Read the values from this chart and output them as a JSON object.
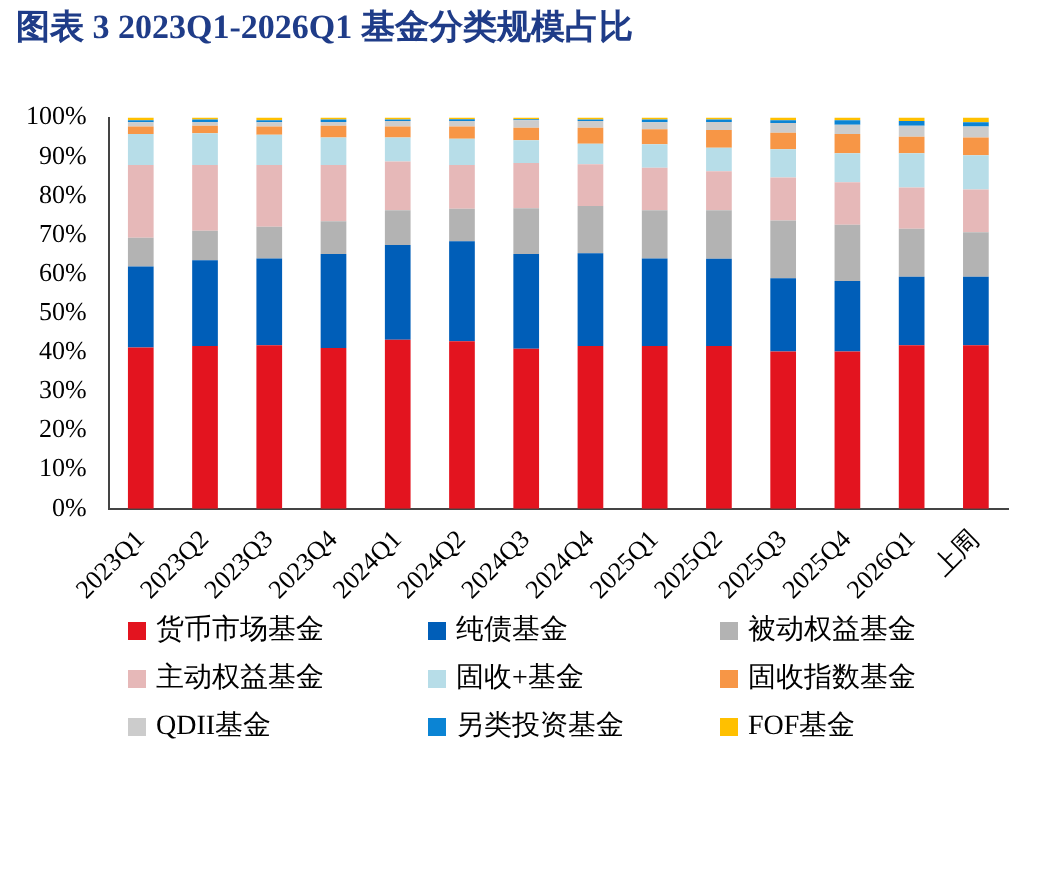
{
  "chart_data": {
    "type": "bar",
    "title": "图表 3   2023Q1-2026Q1 基金分类规模占比",
    "stacked": true,
    "legend": "bottom",
    "grid": false,
    "categories": [
      "2023Q1",
      "2023Q2",
      "2023Q3",
      "2023Q4",
      "2024Q1",
      "2024Q2",
      "2024Q3",
      "2024Q4",
      "2025Q1",
      "2025Q2",
      "2025Q3",
      "2025Q4",
      "2026Q1",
      "上周"
    ],
    "ylim": [
      0,
      100
    ],
    "yticks": [
      {
        "value": 0,
        "label": "0%"
      },
      {
        "value": 10,
        "label": "10%"
      },
      {
        "value": 20,
        "label": "20%"
      },
      {
        "value": 30,
        "label": "30%"
      },
      {
        "value": 40,
        "label": "40%"
      },
      {
        "value": 50,
        "label": "50%"
      },
      {
        "value": 60,
        "label": "60%"
      },
      {
        "value": 70,
        "label": "70%"
      },
      {
        "value": 80,
        "label": "80%"
      },
      {
        "value": 90,
        "label": "90%"
      },
      {
        "value": 100,
        "label": "100%"
      }
    ],
    "series": [
      {
        "name": "货币市场基金",
        "color": "#e3141f",
        "values": [
          41.2,
          41.6,
          41.8,
          41.1,
          43.2,
          42.8,
          40.9,
          41.6,
          41.6,
          41.6,
          40.2,
          40.2,
          41.8,
          41.8
        ]
      },
      {
        "name": "纯债基金",
        "color": "#005eb8",
        "values": [
          20.7,
          21.9,
          22.2,
          24.0,
          24.2,
          25.6,
          24.2,
          23.7,
          22.4,
          22.3,
          18.7,
          18.0,
          17.5,
          17.5
        ]
      },
      {
        "name": "被动权益基金",
        "color": "#b3b3b3",
        "values": [
          7.4,
          7.6,
          8.1,
          8.4,
          8.9,
          8.3,
          11.7,
          12.1,
          12.3,
          12.4,
          14.8,
          14.4,
          12.3,
          11.4
        ]
      },
      {
        "name": "主动权益基金",
        "color": "#e6b8b8",
        "values": [
          18.6,
          16.8,
          15.8,
          14.4,
          12.5,
          11.2,
          11.6,
          10.7,
          10.9,
          10.0,
          11.0,
          10.9,
          10.5,
          10.9
        ]
      },
      {
        "name": "固收+基金",
        "color": "#b7dde8",
        "values": [
          7.9,
          8.1,
          7.7,
          7.0,
          6.1,
          6.7,
          5.8,
          5.2,
          6.0,
          6.0,
          7.2,
          7.4,
          8.8,
          8.8
        ]
      },
      {
        "name": "固收指数基金",
        "color": "#f79646",
        "values": [
          1.9,
          1.9,
          2.1,
          3.0,
          2.8,
          3.1,
          3.2,
          4.1,
          3.8,
          4.5,
          4.2,
          4.9,
          4.2,
          4.5
        ]
      },
      {
        "name": "QDII基金",
        "color": "#cccccc",
        "values": [
          1.1,
          1.0,
          1.1,
          1.0,
          1.4,
          1.4,
          1.9,
          1.7,
          1.8,
          2.1,
          2.5,
          2.4,
          2.8,
          2.8
        ]
      },
      {
        "name": "另类投资基金",
        "color": "#0b84d4",
        "values": [
          0.5,
          0.6,
          0.5,
          0.6,
          0.4,
          0.5,
          0.3,
          0.4,
          0.7,
          0.6,
          0.7,
          1.1,
          1.2,
          1.1
        ]
      },
      {
        "name": "FOF基金",
        "color": "#ffc000",
        "values": [
          0.7,
          0.5,
          0.7,
          0.5,
          0.5,
          0.4,
          0.4,
          0.5,
          0.5,
          0.5,
          0.7,
          0.7,
          0.9,
          1.2
        ]
      }
    ]
  }
}
